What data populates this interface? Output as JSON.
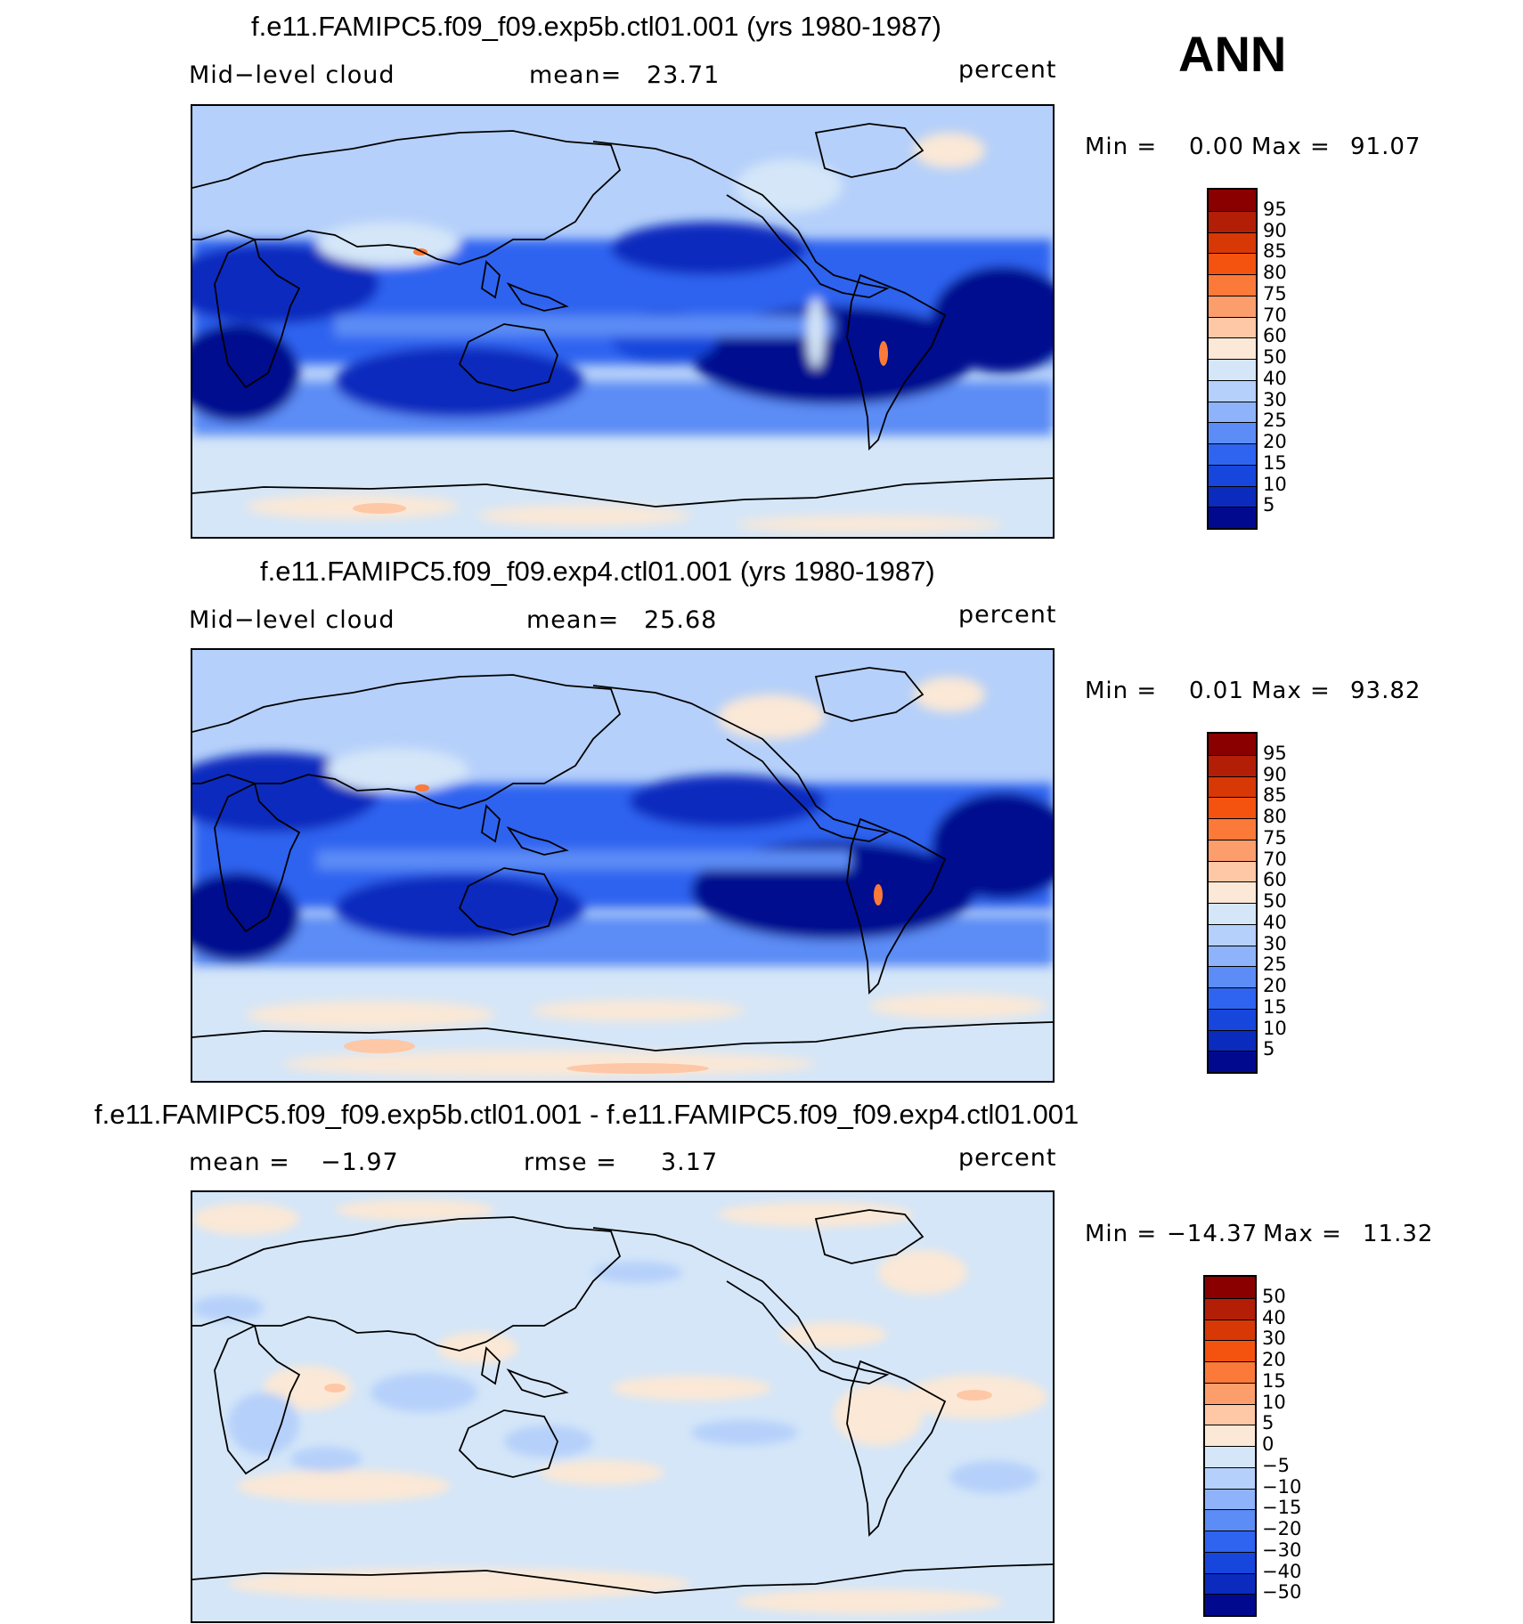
{
  "season": "ANN",
  "panels": [
    {
      "title": "f.e11.FAMIPC5.f09_f09.exp5b.ctl01.001 (yrs 1980-1987)",
      "left_label": "Mid−level cloud",
      "stat_label": "mean=",
      "stat_value": "23.71",
      "stat2_label": "",
      "stat2_value": "",
      "units": "percent",
      "min_label": "Min =",
      "min_value": "0.00",
      "max_label": "Max =",
      "max_value": "91.07",
      "levels": [
        "95",
        "90",
        "85",
        "80",
        "75",
        "70",
        "60",
        "50",
        "40",
        "30",
        "25",
        "20",
        "15",
        "10",
        "5"
      ],
      "colors": [
        "#8a0000",
        "#b31e06",
        "#d83806",
        "#f4520f",
        "#fb7a3a",
        "#fc9e6c",
        "#fec7a6",
        "#fbe8d6",
        "#d4e6f8",
        "#b5d0fa",
        "#8eb3fa",
        "#5c8cf5",
        "#2e64f0",
        "#1646dc",
        "#0b2bbe",
        "#010a8f"
      ]
    },
    {
      "title": "f.e11.FAMIPC5.f09_f09.exp4.ctl01.001 (yrs 1980-1987)",
      "left_label": "Mid−level cloud",
      "stat_label": "mean=",
      "stat_value": "25.68",
      "stat2_label": "",
      "stat2_value": "",
      "units": "percent",
      "min_label": "Min =",
      "min_value": "0.01",
      "max_label": "Max =",
      "max_value": "93.82",
      "levels": [
        "95",
        "90",
        "85",
        "80",
        "75",
        "70",
        "60",
        "50",
        "40",
        "30",
        "25",
        "20",
        "15",
        "10",
        "5"
      ],
      "colors": [
        "#8a0000",
        "#b31e06",
        "#d83806",
        "#f4520f",
        "#fb7a3a",
        "#fc9e6c",
        "#fec7a6",
        "#fbe8d6",
        "#d4e6f8",
        "#b5d0fa",
        "#8eb3fa",
        "#5c8cf5",
        "#2e64f0",
        "#1646dc",
        "#0b2bbe",
        "#010a8f"
      ]
    },
    {
      "title": "f.e11.FAMIPC5.f09_f09.exp5b.ctl01.001 - f.e11.FAMIPC5.f09_f09.exp4.ctl01.001",
      "left_label": "mean =",
      "stat_label": "",
      "stat_value": "−1.97",
      "stat2_label": "rmse =",
      "stat2_value": "3.17",
      "units": "percent",
      "min_label": "Min =",
      "min_value": "−14.37",
      "max_label": "Max =",
      "max_value": "11.32",
      "levels": [
        "50",
        "40",
        "30",
        "20",
        "15",
        "10",
        "5",
        "0",
        "−5",
        "−10",
        "−15",
        "−20",
        "−30",
        "−40",
        "−50"
      ],
      "colors": [
        "#8a0000",
        "#b31e06",
        "#d83806",
        "#f4520f",
        "#fb7a3a",
        "#fc9e6c",
        "#fec7a6",
        "#fbe8d6",
        "#d4e6f8",
        "#b5d0fa",
        "#8eb3fa",
        "#5c8cf5",
        "#2e64f0",
        "#1646dc",
        "#0b2bbe",
        "#010a8f"
      ]
    }
  ]
}
